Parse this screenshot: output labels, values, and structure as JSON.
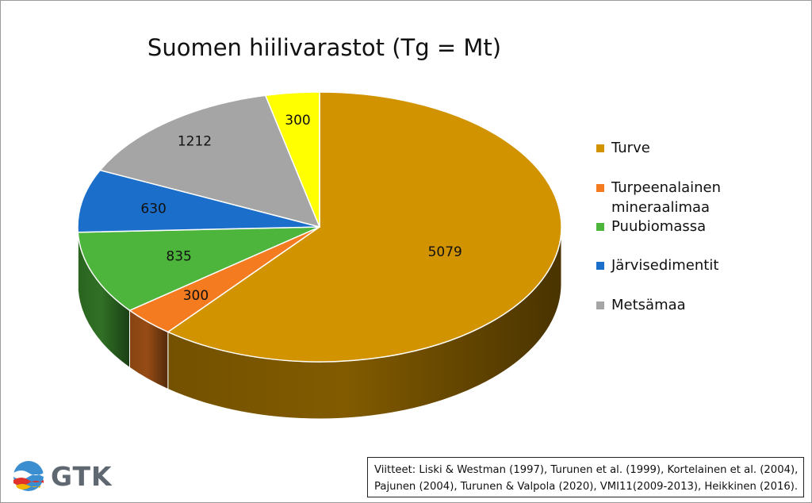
{
  "chart_data": {
    "type": "pie",
    "title": "Suomen hiilivarastot (Tg = Mt)",
    "slices": [
      {
        "label": "Turve",
        "value": 5079,
        "color": "#D19300"
      },
      {
        "label": "Turpeenalainen mineraalimaa",
        "value": 300,
        "color": "#F47B20"
      },
      {
        "label": "Puubiomassa",
        "value": 835,
        "color": "#4DB53B"
      },
      {
        "label": "Järvisedimentit",
        "value": 630,
        "color": "#1B6FCA"
      },
      {
        "label": "Metsämaa",
        "value": 1212,
        "color": "#A5A5A5"
      },
      {
        "label": "",
        "value": 300,
        "color": "#FFFF00"
      }
    ],
    "legend_position": "right",
    "style": "3d-pie"
  },
  "legend": [
    {
      "label": "Turve",
      "color": "#D19300"
    },
    {
      "label": "Turpeenalainen mineraalimaa",
      "color": "#F47B20"
    },
    {
      "label": "Puubiomassa",
      "color": "#4DB53B"
    },
    {
      "label": "Järvisedimentit",
      "color": "#1B6FCA"
    },
    {
      "label": "Metsämaa",
      "color": "#A5A5A5"
    }
  ],
  "logo": {
    "text": "GTK"
  },
  "references": {
    "line1": "Viitteet: Liski & Westman (1997), Turunen et al. (1999), Kortelainen et al. (2004),",
    "line2": "Pajunen (2004), Turunen & Valpola (2020), VMI11(2009-2013), Heikkinen (2016)."
  }
}
